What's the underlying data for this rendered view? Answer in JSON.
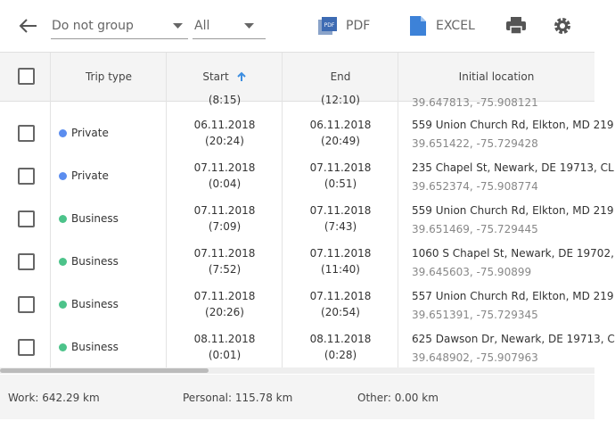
{
  "toolbar": {
    "group": "Do not group",
    "filter": "All",
    "pdf": "PDF",
    "excel": "EXCEL"
  },
  "table": {
    "headers": [
      "Trip type",
      "Start",
      "End",
      "Initial location"
    ],
    "partial_row": {
      "start": "(8:15)",
      "end": "(12:10)",
      "coords": "39.647813, -75.908121"
    },
    "rows": [
      {
        "type": "Private",
        "color": "#5b8def",
        "start_date": "06.11.2018",
        "start_time": "(20:24)",
        "end_date": "06.11.2018",
        "end_time": "(20:49)",
        "address": "559 Union Church Rd, Elkton, MD 219",
        "coords": "39.651422, -75.729428"
      },
      {
        "type": "Private",
        "color": "#5b8def",
        "start_date": "07.11.2018",
        "start_time": "(0:04)",
        "end_date": "07.11.2018",
        "end_time": "(0:51)",
        "address": "235 Chapel St, Newark, DE 19713, CL",
        "coords": "39.652374, -75.908774"
      },
      {
        "type": "Business",
        "color": "#4cc38a",
        "start_date": "07.11.2018",
        "start_time": "(7:09)",
        "end_date": "07.11.2018",
        "end_time": "(7:43)",
        "address": "559 Union Church Rd, Elkton, MD 219",
        "coords": "39.651469, -75.729445"
      },
      {
        "type": "Business",
        "color": "#4cc38a",
        "start_date": "07.11.2018",
        "start_time": "(7:52)",
        "end_date": "07.11.2018",
        "end_time": "(11:40)",
        "address": "1060 S Chapel St, Newark, DE 19702,",
        "coords": "39.645603, -75.90899"
      },
      {
        "type": "Business",
        "color": "#4cc38a",
        "start_date": "07.11.2018",
        "start_time": "(20:26)",
        "end_date": "07.11.2018",
        "end_time": "(20:54)",
        "address": "557 Union Church Rd, Elkton, MD 219",
        "coords": "39.651391, -75.729345"
      },
      {
        "type": "Business",
        "color": "#4cc38a",
        "start_date": "08.11.2018",
        "start_time": "(0:01)",
        "end_date": "08.11.2018",
        "end_time": "(0:28)",
        "address": "625 Dawson Dr, Newark, DE 19713, C",
        "coords": "39.648902, -75.907963"
      }
    ]
  },
  "footer": {
    "work": "Work: 642.29 km",
    "personal": "Personal: 115.78 km",
    "other": "Other: 0.00 km"
  }
}
